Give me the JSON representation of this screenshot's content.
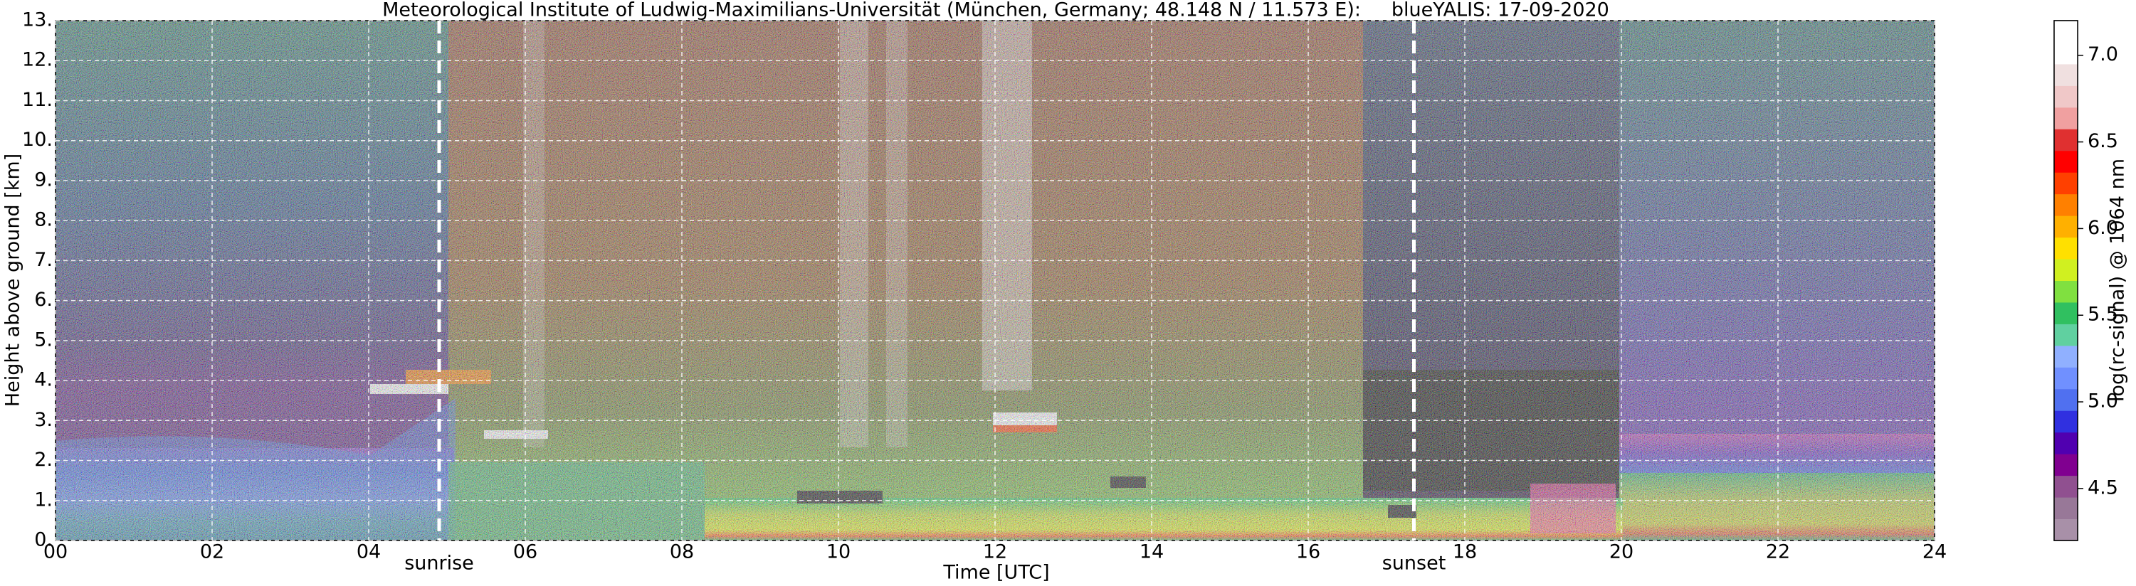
{
  "chart_data": {
    "type": "heatmap",
    "title": "Meteorological Institute of Ludwig-Maximilians-Universität (München, Germany; 48.148 N / 11.573 E):     blueYALIS: 17-09-2020",
    "xlabel": "Time [UTC]",
    "ylabel": "Height above ground [km]",
    "xlim": [
      0,
      24
    ],
    "xticks": [
      {
        "value": 0,
        "label": "00"
      },
      {
        "value": 2,
        "label": "02"
      },
      {
        "value": 4,
        "label": "04"
      },
      {
        "value": 6,
        "label": "06"
      },
      {
        "value": 8,
        "label": "08"
      },
      10,
      12,
      14,
      16,
      18,
      20,
      22,
      24
    ],
    "ylim": [
      0,
      13
    ],
    "yticks": [
      {
        "value": 0,
        "label": "0."
      },
      {
        "value": 1,
        "label": "1."
      },
      {
        "value": 2,
        "label": "2."
      },
      {
        "value": 3,
        "label": "3."
      },
      {
        "value": 4,
        "label": "4."
      },
      {
        "value": 5,
        "label": "5."
      },
      {
        "value": 6,
        "label": "6."
      },
      {
        "value": 7,
        "label": "7."
      },
      {
        "value": 8,
        "label": "8."
      },
      {
        "value": 9,
        "label": "9."
      },
      {
        "value": 10,
        "label": "10."
      },
      {
        "value": 11,
        "label": "11."
      },
      {
        "value": 12,
        "label": "12."
      },
      {
        "value": 13,
        "label": "13."
      }
    ],
    "grid": true,
    "annotations": [
      {
        "text": "sunrise",
        "x": 4.9
      },
      {
        "text": "sunset",
        "x": 17.35
      }
    ],
    "colorbar": {
      "label": "log(rc-signal) @ 1064 nm",
      "lim": [
        4.2,
        7.2
      ],
      "ticks": [
        4.5,
        {
          "value": 5,
          "label": "5.0"
        },
        5.5,
        {
          "value": 6,
          "label": "6.0"
        },
        6.5,
        {
          "value": 7,
          "label": "7.0"
        }
      ],
      "colormap": [
        "#a890a8",
        "#987898",
        "#905090",
        "#800090",
        "#5000b0",
        "#3030e0",
        "#5070f0",
        "#7090ff",
        "#90b0ff",
        "#60d0a0",
        "#30c060",
        "#80e040",
        "#d0f020",
        "#ffe000",
        "#ffb000",
        "#ff8000",
        "#ff4000",
        "#ff0000",
        "#e03030",
        "#f0a0a0",
        "#f0c8c8",
        "#f0e0e0",
        "#ffffff",
        "#ffffff"
      ]
    }
  }
}
